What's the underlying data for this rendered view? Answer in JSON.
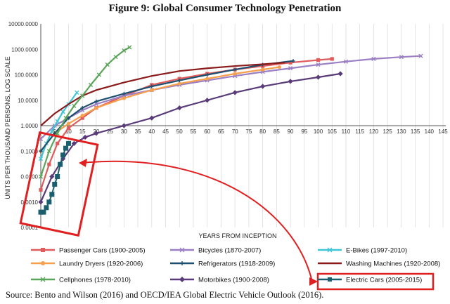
{
  "page": {
    "title": "Figure 9: Global Consumer Technology Penetration",
    "source": "Source: Bento and Wilson (2016) and OECD/IEA Global Electric Vehicle Outlook (2016)."
  },
  "chart_data": {
    "type": "line",
    "xlabel": "YEARS FROM INCEPTION",
    "ylabel": "UNITS PER THOUSAND PERSONS, LOG SCALE",
    "x_tick_labels": [
      "0",
      "5",
      "10",
      "15",
      "20",
      "25",
      "30",
      "35",
      "40",
      "45",
      "50",
      "55",
      "60",
      "65",
      "70",
      "75",
      "80",
      "85",
      "90",
      "95",
      "100",
      "105",
      "110",
      "115",
      "120",
      "125",
      "130",
      "135",
      "140",
      "145"
    ],
    "y_tick_labels": [
      "0.0001",
      "0.0010",
      "0.0100",
      "0.1000",
      "1.0000",
      "10.0000",
      "100.0000",
      "1000.0000",
      "10000.0000"
    ],
    "xlim": [
      0,
      146
    ],
    "ylim": [
      0.0001,
      10000
    ],
    "y_scale": "log",
    "grid": "vertical",
    "legend_position": "bottom",
    "series": [
      {
        "name": "Passenger Cars (1900-2005)",
        "color": "#e05c5c",
        "marker": "square",
        "x": [
          0,
          3,
          6,
          10,
          15,
          20,
          30,
          40,
          50,
          60,
          70,
          80,
          90,
          100,
          105
        ],
        "y": [
          0.003,
          0.03,
          0.2,
          0.8,
          2,
          5,
          15,
          40,
          70,
          110,
          160,
          220,
          300,
          380,
          420
        ]
      },
      {
        "name": "Bicycles (1870-2007)",
        "color": "#9b7fc4",
        "marker": "x",
        "x": [
          0,
          5,
          10,
          15,
          20,
          30,
          40,
          50,
          60,
          70,
          80,
          90,
          100,
          110,
          120,
          130,
          137
        ],
        "y": [
          0.3,
          1,
          2,
          4,
          7,
          15,
          25,
          40,
          60,
          90,
          130,
          180,
          250,
          330,
          420,
          500,
          550
        ]
      },
      {
        "name": "E-Bikes (1997-2010)",
        "color": "#3ec5d6",
        "marker": "x",
        "x": [
          0,
          2,
          4,
          6,
          8,
          10,
          13
        ],
        "y": [
          0.05,
          0.2,
          0.6,
          1.5,
          3.5,
          7,
          20
        ]
      },
      {
        "name": "Laundry Dryers (1920-2006)",
        "color": "#f6a04d",
        "marker": "circle",
        "x": [
          0,
          5,
          10,
          15,
          20,
          30,
          40,
          50,
          60,
          70,
          80,
          86
        ],
        "y": [
          0.1,
          0.5,
          1.2,
          2.5,
          5,
          12,
          25,
          45,
          70,
          110,
          160,
          200
        ]
      },
      {
        "name": "Refrigerators (1918-2009)",
        "color": "#1d4f6e",
        "marker": "plus",
        "x": [
          0,
          5,
          10,
          15,
          20,
          30,
          40,
          50,
          60,
          70,
          80,
          91
        ],
        "y": [
          0.1,
          0.5,
          2,
          5,
          9,
          18,
          35,
          60,
          100,
          160,
          250,
          350
        ]
      },
      {
        "name": "Washing Machines (1920-2008)",
        "color": "#8b1a1a",
        "marker": "none",
        "x": [
          0,
          5,
          10,
          15,
          20,
          30,
          40,
          50,
          60,
          70,
          80,
          88
        ],
        "y": [
          1,
          3,
          7,
          15,
          25,
          50,
          90,
          140,
          180,
          220,
          260,
          300
        ]
      },
      {
        "name": "Cellphones (1978-2010)",
        "color": "#5aa55a",
        "marker": "x",
        "x": [
          0,
          3,
          6,
          9,
          12,
          15,
          18,
          21,
          24,
          27,
          30,
          32
        ],
        "y": [
          0.01,
          0.1,
          0.5,
          2,
          6,
          15,
          40,
          100,
          250,
          500,
          900,
          1200
        ]
      },
      {
        "name": "Motorbikes (1900-2008)",
        "color": "#5a3b7a",
        "marker": "diamond",
        "x": [
          0,
          4,
          8,
          12,
          16,
          20,
          30,
          40,
          50,
          60,
          70,
          80,
          90,
          100,
          108
        ],
        "y": [
          0.001,
          0.01,
          0.05,
          0.2,
          0.35,
          0.5,
          1,
          2,
          5,
          10,
          20,
          35,
          55,
          80,
          110
        ]
      },
      {
        "name": "Electric Cars (2005-2015)",
        "color": "#1b5f6e",
        "marker": "square",
        "x": [
          0,
          1,
          2,
          3,
          4,
          5,
          6,
          7,
          8,
          9,
          10
        ],
        "y": [
          0.0004,
          0.0004,
          0.0006,
          0.001,
          0.002,
          0.005,
          0.01,
          0.03,
          0.07,
          0.13,
          0.2
        ]
      }
    ]
  }
}
